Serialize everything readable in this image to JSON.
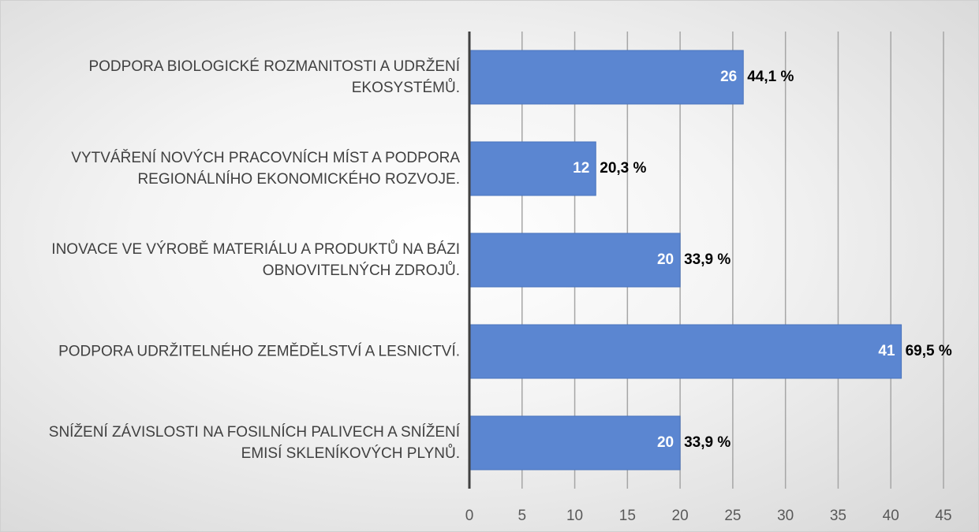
{
  "chart_data": {
    "type": "barh",
    "categories": [
      "PODPORA BIOLOGICKÉ ROZMANITOSTI A UDRŽENÍ EKOSYSTÉMŮ.",
      "VYTVÁŘENÍ NOVÝCH PRACOVNÍCH MÍST A PODPORA REGIONÁLNÍHO EKONOMICKÉHO ROZVOJE.",
      "INOVACE VE VÝROBĚ MATERIÁLU A PRODUKTŮ NA BÁZI OBNOVITELNÝCH ZDROJŮ.",
      "PODPORA UDRŽITELNÉHO ZEMĚDĚLSTVÍ A LESNICTVÍ.",
      "SNÍŽENÍ ZÁVISLOSTI NA FOSILNÍCH PALIVECH A SNÍŽENÍ EMISÍ SKLENÍKOVÝCH PLYNŮ."
    ],
    "values": [
      26,
      12,
      20,
      41,
      20
    ],
    "percentages": [
      44.1,
      20.3,
      33.9,
      69.5,
      33.9
    ],
    "percentage_labels": [
      "44,1 %",
      "20,3 %",
      "33,9 %",
      "69,5 %",
      "33,9 %"
    ],
    "color": "#5b86d1",
    "xlim": [
      0,
      45
    ],
    "xticks": [
      0,
      5,
      10,
      15,
      20,
      25,
      30,
      35,
      40,
      45
    ],
    "grid": true
  }
}
